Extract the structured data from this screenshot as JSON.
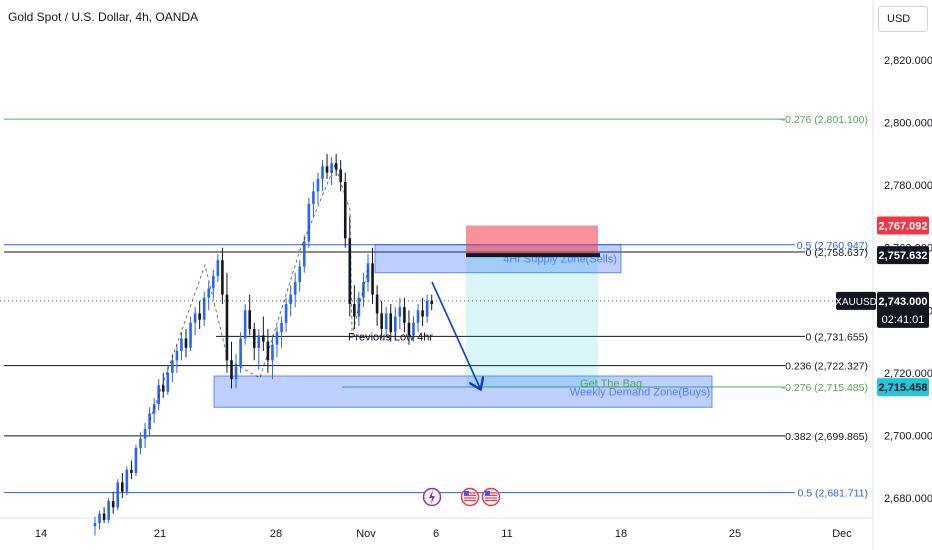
{
  "header": {
    "symbol_title": "Gold Spot / U.S. Dollar, 4h, OANDA",
    "currency": "USD"
  },
  "colors": {
    "bull": "#2962ff",
    "bear": "#131722",
    "fib_green": "#4caf50",
    "fib_blue": "#2962ff",
    "fib_black": "#131722",
    "zone_blue": "#2962ff",
    "stop_red": "#f23645",
    "target_cyan": "#00bcd4"
  },
  "chart_data": {
    "type": "candlestick",
    "symbol": "XAUUSD",
    "timeframe": "4h",
    "x_ticks": [
      "14",
      "21",
      "28",
      "Nov",
      "6",
      "11",
      "18",
      "25",
      "Dec"
    ],
    "y_ticks": [
      "2,820.000",
      "2,800.000",
      "2,780.000",
      "2,760.000",
      "2,740.000",
      "2,720.000",
      "2,700.000",
      "2,680.000"
    ],
    "ylim": [
      2672,
      2831
    ],
    "grid": false,
    "candles": [
      [
        2671,
        2674,
        2668,
        2672
      ],
      [
        2672,
        2676,
        2670,
        2675
      ],
      [
        2675,
        2677,
        2672,
        2673
      ],
      [
        2673,
        2680,
        2672,
        2679
      ],
      [
        2679,
        2682,
        2675,
        2677
      ],
      [
        2677,
        2686,
        2676,
        2685
      ],
      [
        2685,
        2688,
        2680,
        2682
      ],
      [
        2682,
        2690,
        2681,
        2689
      ],
      [
        2689,
        2692,
        2686,
        2688
      ],
      [
        2688,
        2697,
        2687,
        2696
      ],
      [
        2696,
        2701,
        2694,
        2699
      ],
      [
        2699,
        2704,
        2696,
        2702
      ],
      [
        2702,
        2709,
        2700,
        2707
      ],
      [
        2707,
        2712,
        2704,
        2710
      ],
      [
        2710,
        2718,
        2708,
        2716
      ],
      [
        2716,
        2720,
        2712,
        2714
      ],
      [
        2714,
        2722,
        2713,
        2720
      ],
      [
        2720,
        2726,
        2717,
        2724
      ],
      [
        2724,
        2729,
        2720,
        2727
      ],
      [
        2727,
        2733,
        2724,
        2731
      ],
      [
        2731,
        2734,
        2725,
        2728
      ],
      [
        2728,
        2738,
        2727,
        2736
      ],
      [
        2736,
        2741,
        2732,
        2739
      ],
      [
        2739,
        2743,
        2734,
        2737
      ],
      [
        2737,
        2746,
        2735,
        2744
      ],
      [
        2744,
        2749,
        2740,
        2747
      ],
      [
        2747,
        2753,
        2744,
        2751
      ],
      [
        2751,
        2758,
        2749,
        2756
      ],
      [
        2756,
        2760,
        2742,
        2745
      ],
      [
        2745,
        2752,
        2720,
        2724
      ],
      [
        2724,
        2730,
        2715,
        2718
      ],
      [
        2718,
        2726,
        2715,
        2722
      ],
      [
        2722,
        2733,
        2720,
        2731
      ],
      [
        2731,
        2742,
        2729,
        2740
      ],
      [
        2740,
        2745,
        2732,
        2734
      ],
      [
        2734,
        2736,
        2724,
        2728
      ],
      [
        2728,
        2734,
        2721,
        2732
      ],
      [
        2732,
        2738,
        2727,
        2730
      ],
      [
        2730,
        2734,
        2720,
        2724
      ],
      [
        2724,
        2732,
        2718,
        2729
      ],
      [
        2729,
        2735,
        2725,
        2733
      ],
      [
        2733,
        2738,
        2728,
        2736
      ],
      [
        2736,
        2744,
        2733,
        2742
      ],
      [
        2742,
        2748,
        2738,
        2745
      ],
      [
        2745,
        2752,
        2741,
        2749
      ],
      [
        2749,
        2756,
        2746,
        2754
      ],
      [
        2754,
        2764,
        2752,
        2762
      ],
      [
        2762,
        2776,
        2760,
        2774
      ],
      [
        2774,
        2781,
        2770,
        2778
      ],
      [
        2778,
        2784,
        2774,
        2782
      ],
      [
        2782,
        2788,
        2778,
        2786
      ],
      [
        2786,
        2790,
        2782,
        2784
      ],
      [
        2784,
        2789,
        2780,
        2787
      ],
      [
        2787,
        2790,
        2783,
        2785
      ],
      [
        2785,
        2788,
        2778,
        2781
      ],
      [
        2781,
        2784,
        2760,
        2763
      ],
      [
        2763,
        2770,
        2738,
        2742
      ],
      [
        2742,
        2748,
        2734,
        2738
      ],
      [
        2738,
        2746,
        2735,
        2744
      ],
      [
        2744,
        2752,
        2741,
        2749
      ],
      [
        2749,
        2758,
        2746,
        2755
      ],
      [
        2755,
        2760,
        2742,
        2745
      ],
      [
        2745,
        2748,
        2735,
        2739
      ],
      [
        2739,
        2743,
        2731,
        2734
      ],
      [
        2734,
        2741,
        2732,
        2739
      ],
      [
        2739,
        2742,
        2730,
        2733
      ],
      [
        2733,
        2741,
        2731,
        2738
      ],
      [
        2738,
        2744,
        2734,
        2741
      ],
      [
        2741,
        2744,
        2733,
        2736
      ],
      [
        2736,
        2740,
        2729,
        2732
      ],
      [
        2732,
        2738,
        2730,
        2736
      ],
      [
        2736,
        2742,
        2733,
        2740
      ],
      [
        2740,
        2744,
        2735,
        2738
      ],
      [
        2738,
        2745,
        2736,
        2743
      ],
      [
        2743,
        2745,
        2740,
        2742
      ]
    ],
    "fib_levels": [
      {
        "label": "-0.276 (2,801.100)",
        "price": 2801.1,
        "color": "fib_green"
      },
      {
        "label": "0.5 (2,760.947)",
        "price": 2760.947,
        "color": "fib_blue"
      },
      {
        "label": "0 (2,758.637)",
        "price": 2758.637,
        "color": "fib_black"
      },
      {
        "label": "0 (2,731.655)",
        "price": 2731.655,
        "color": "fib_black"
      },
      {
        "label": "0.236 (2,722.327)",
        "price": 2722.327,
        "color": "fib_black"
      },
      {
        "label": "-0.276 (2,715.485)",
        "price": 2715.485,
        "color": "fib_green"
      },
      {
        "label": "0.382 (2,699.865)",
        "price": 2699.865,
        "color": "fib_black"
      },
      {
        "label": "0.5 (2,681.711)",
        "price": 2681.711,
        "color": "fib_blue"
      }
    ],
    "zones": [
      {
        "label": "4Hr Supply Zone(Sells)",
        "top": 2761,
        "bottom": 2752
      },
      {
        "label": "Weekly Demand Zone(Buys)",
        "top": 2719,
        "bottom": 2709
      }
    ],
    "annotations": [
      {
        "text": "Previous Low 4hr",
        "price": 2731.655
      },
      {
        "text": "Get The Bag",
        "price": 2716.5
      }
    ],
    "trade_position": {
      "entry": 2757.632,
      "stop": 2767.092,
      "target": 2715.458
    },
    "price_badges": [
      {
        "text": "2,767.092",
        "price": 2767.092,
        "style": "red"
      },
      {
        "text": "2,757.632",
        "price": 2757.632,
        "style": "dark"
      },
      {
        "text": "2,715.458",
        "price": 2715.458,
        "style": "cyan"
      }
    ],
    "current_price": {
      "symbol": "XAUUSD",
      "price": "2,743.000",
      "countdown": "02:41:01",
      "value": 2743
    }
  }
}
